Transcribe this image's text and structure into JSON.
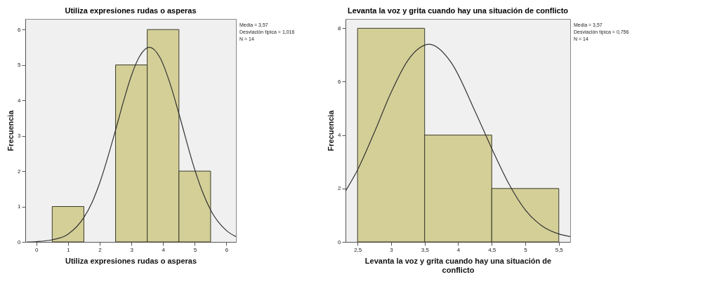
{
  "chart_data": [
    {
      "type": "histogram",
      "title": "Utiliza expresiones rudas o asperas",
      "xlabel": "Utiliza expresiones rudas o asperas",
      "ylabel": "Frecuencia",
      "bins": [
        0.5,
        1.5,
        2.5,
        3.5,
        4.5,
        5.5
      ],
      "values": [
        1,
        0,
        5,
        6,
        2
      ],
      "color": "#d4cf97",
      "series": [
        {
          "type": "line",
          "color": "#333333",
          "x": [
            -0.3,
            0,
            0.5,
            1,
            1.5,
            1.75,
            2,
            2.5,
            2.75,
            3,
            3.25,
            3.57,
            3.9,
            4.25,
            4.5,
            5,
            5.25,
            5.5,
            6,
            6.3
          ],
          "values": [
            0,
            0.01,
            0.06,
            0.22,
            0.69,
            1.1,
            1.67,
            3.16,
            3.97,
            4.7,
            5.23,
            5.5,
            5.21,
            4.39,
            3.62,
            2.04,
            1.4,
            0.9,
            0.32,
            0.15
          ]
        }
      ],
      "xlim": [
        -0.35,
        6.3
      ],
      "xticks": [
        0,
        1,
        2,
        3,
        4,
        5,
        6
      ],
      "ylim": [
        0,
        6.3
      ],
      "yticks": [
        0,
        1,
        2,
        3,
        4,
        5,
        6
      ],
      "grid": false,
      "annotations": [
        "Media = 3,57",
        "Desviación típica = 1,016",
        "N = 14"
      ]
    },
    {
      "type": "histogram",
      "title": "Levanta la voz y grita  cuando hay una situación de conflicto",
      "xlabel": "Levanta la voz y grita  cuando hay una situación de conflicto",
      "ylabel": "Frecuencia",
      "bins": [
        2.5,
        3.5,
        4.5,
        5.5
      ],
      "values": [
        8,
        4,
        2
      ],
      "color": "#d4cf97",
      "series": [
        {
          "type": "line",
          "color": "#333333",
          "x": [
            2.32,
            2.5,
            2.75,
            3,
            3.25,
            3.57,
            3.9,
            4.25,
            4.5,
            4.75,
            5,
            5.25,
            5.5,
            5.67
          ],
          "values": [
            1.9,
            2.7,
            4.1,
            5.6,
            6.8,
            7.4,
            6.7,
            4.9,
            3.5,
            2.2,
            1.2,
            0.6,
            0.3,
            0.2
          ]
        }
      ],
      "xlim": [
        2.32,
        5.67
      ],
      "xticks": [
        {
          "value": 2.5,
          "label": "2,5"
        },
        3,
        {
          "value": 3.5,
          "label": "3,5"
        },
        4,
        {
          "value": 4.5,
          "label": "4,5"
        },
        5,
        {
          "value": 5.5,
          "label": "5,5"
        }
      ],
      "ylim": [
        0,
        8.35
      ],
      "yticks": [
        0,
        2,
        4,
        6,
        8
      ],
      "grid": false,
      "annotations": [
        "Media = 3,57",
        "Desviación típica = 0,756",
        "N = 14"
      ]
    }
  ]
}
